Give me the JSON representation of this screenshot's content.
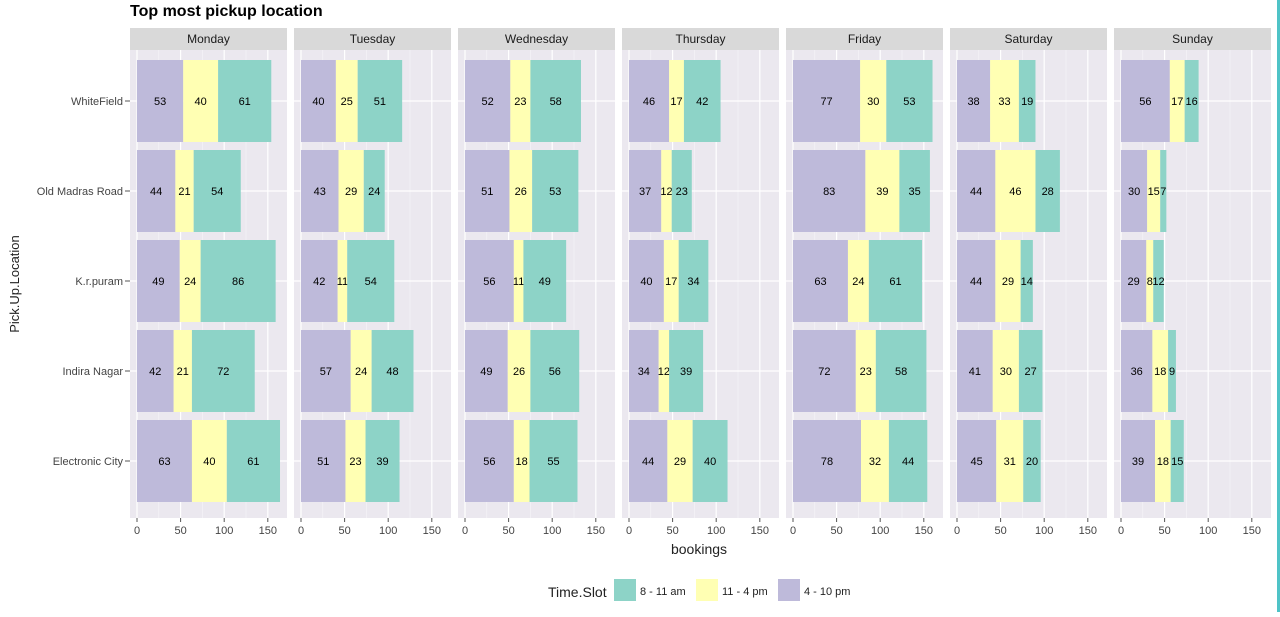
{
  "chart_data": {
    "type": "bar",
    "orientation": "horizontal",
    "stacked": true,
    "facet_by": "day",
    "title": "Top most pickup location",
    "xlabel": "bookings",
    "ylabel": "Pick.Up.Location",
    "xlim": [
      0,
      170
    ],
    "x_ticks": [
      "0",
      "50",
      "100",
      "150"
    ],
    "grid": true,
    "legend_position": "bottom",
    "legend_title": "Time.Slot",
    "categories": [
      "WhiteField",
      "Old Madras Road",
      "K.r.puram",
      "Indira Nagar",
      "Electronic City"
    ],
    "series": [
      {
        "name": "4 - 10 pm",
        "color": "#bebada"
      },
      {
        "name": "11 - 4 pm",
        "color": "#ffffb3"
      },
      {
        "name": "8 - 11 am",
        "color": "#8dd3c7"
      }
    ],
    "legend_order": [
      "8 - 11 am",
      "11 - 4 pm",
      "4 - 10 pm"
    ],
    "facets": [
      {
        "day": "Monday",
        "values": {
          "4 - 10 pm": [
            53,
            44,
            49,
            42,
            63
          ],
          "11 - 4 pm": [
            40,
            21,
            24,
            21,
            40
          ],
          "8 - 11 am": [
            61,
            54,
            86,
            72,
            61
          ]
        }
      },
      {
        "day": "Tuesday",
        "values": {
          "4 - 10 pm": [
            40,
            43,
            42,
            57,
            51
          ],
          "11 - 4 pm": [
            25,
            29,
            11,
            24,
            23
          ],
          "8 - 11 am": [
            51,
            24,
            54,
            48,
            39
          ]
        }
      },
      {
        "day": "Wednesday",
        "values": {
          "4 - 10 pm": [
            52,
            51,
            56,
            49,
            56
          ],
          "11 - 4 pm": [
            23,
            26,
            11,
            26,
            18
          ],
          "8 - 11 am": [
            58,
            53,
            49,
            56,
            55
          ]
        }
      },
      {
        "day": "Thursday",
        "values": {
          "4 - 10 pm": [
            46,
            37,
            40,
            34,
            44
          ],
          "11 - 4 pm": [
            17,
            12,
            17,
            12,
            29
          ],
          "8 - 11 am": [
            42,
            23,
            34,
            39,
            40
          ]
        }
      },
      {
        "day": "Friday",
        "values": {
          "4 - 10 pm": [
            77,
            83,
            63,
            72,
            78
          ],
          "11 - 4 pm": [
            30,
            39,
            24,
            23,
            32
          ],
          "8 - 11 am": [
            53,
            35,
            61,
            58,
            44
          ]
        }
      },
      {
        "day": "Saturday",
        "values": {
          "4 - 10 pm": [
            38,
            44,
            44,
            41,
            45
          ],
          "11 - 4 pm": [
            33,
            46,
            29,
            30,
            31
          ],
          "8 - 11 am": [
            19,
            28,
            14,
            27,
            20
          ]
        }
      },
      {
        "day": "Sunday",
        "values": {
          "4 - 10 pm": [
            56,
            30,
            29,
            36,
            39
          ],
          "11 - 4 pm": [
            17,
            15,
            8,
            18,
            18
          ],
          "8 - 11 am": [
            16,
            7,
            12,
            9,
            15
          ]
        }
      }
    ]
  }
}
